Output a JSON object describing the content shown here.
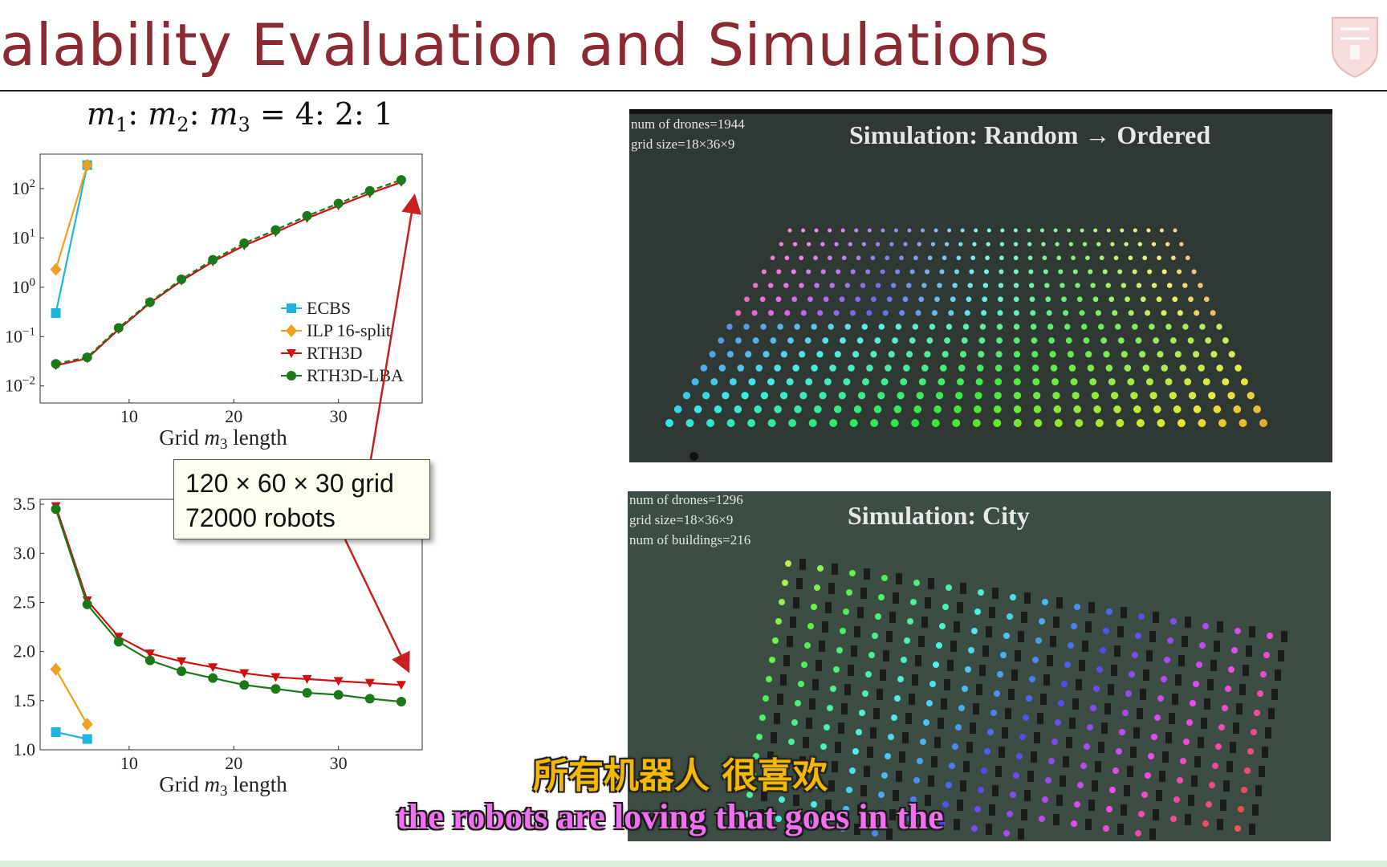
{
  "slide": {
    "title": "alability Evaluation and Simulations",
    "ratio": {
      "m1": "m",
      "s1": "1",
      "m2": "m",
      "s2": "2",
      "m3": "m",
      "s3": "3",
      "value": "= 4: 2: 1"
    }
  },
  "callout": {
    "line1": "120 × 60 × 30 grid",
    "line2": "72000 robots"
  },
  "simulations": [
    {
      "title": "Simulation: Random → Ordered",
      "info": [
        "num of drones=1944",
        "grid size=18×36×9"
      ]
    },
    {
      "title": "Simulation: City",
      "info": [
        "num of drones=1296",
        "grid size=18×36×9",
        "num of buildings=216"
      ]
    }
  ],
  "subtitles": {
    "zh": "所有机器人 很喜欢",
    "en": "the robots are loving that goes in the"
  },
  "colors": {
    "title": "#8b2a33",
    "ecbs": "#1fb3e0",
    "ilp": "#f0a020",
    "rth3d": "#d01010",
    "lba": "#1a7a1a"
  },
  "chart_data": [
    {
      "type": "line",
      "scale": "log-y",
      "xlabel_prefix": "Grid ",
      "xlabel_var": "m",
      "xlabel_sub": "3",
      "xlabel_suffix": " length",
      "xlim": [
        1.5,
        38
      ],
      "xticks": [
        10,
        20,
        30
      ],
      "yticks": [
        {
          "value": 0.01,
          "base": "10",
          "exp": "−2"
        },
        {
          "value": 0.1,
          "base": "10",
          "exp": "−1"
        },
        {
          "value": 1,
          "base": "10",
          "exp": "0"
        },
        {
          "value": 10,
          "base": "10",
          "exp": "1"
        },
        {
          "value": 100,
          "base": "10",
          "exp": "2"
        }
      ],
      "ylim": [
        0.0045,
        500
      ],
      "legend": "lower-right",
      "series": [
        {
          "name": "ECBS",
          "marker": "square",
          "color": "#1fb3e0",
          "x": [
            3,
            6
          ],
          "y": [
            0.3,
            300
          ]
        },
        {
          "name": "ILP 16-split",
          "marker": "diamond",
          "color": "#f0a020",
          "x": [
            3,
            6
          ],
          "y": [
            2.3,
            300
          ]
        },
        {
          "name": "RTH3D",
          "marker": "triangle",
          "color": "#d01010",
          "x": [
            3,
            6,
            9,
            12,
            15,
            18,
            21,
            24,
            27,
            30,
            33,
            36
          ],
          "y": [
            0.026,
            0.036,
            0.14,
            0.48,
            1.35,
            3.3,
            7.0,
            13.0,
            25.0,
            45.0,
            80.0,
            135.0
          ]
        },
        {
          "name": "RTH3D-LBA",
          "marker": "circle",
          "color": "#1a7a1a",
          "x": [
            3,
            6,
            9,
            12,
            15,
            18,
            21,
            24,
            27,
            30,
            33,
            36
          ],
          "y": [
            0.028,
            0.038,
            0.15,
            0.5,
            1.45,
            3.6,
            7.8,
            14.5,
            28.0,
            50.0,
            90.0,
            150.0
          ]
        }
      ]
    },
    {
      "type": "line",
      "xlabel_prefix": "Grid ",
      "xlabel_var": "m",
      "xlabel_sub": "3",
      "xlabel_suffix": " length",
      "xlim": [
        1.5,
        38
      ],
      "xticks": [
        10,
        20,
        30
      ],
      "yticks": [
        "1.0",
        "1.5",
        "2.0",
        "2.5",
        "3.0",
        "3.5"
      ],
      "ylim": [
        1.0,
        3.55
      ],
      "series": [
        {
          "name": "ECBS",
          "marker": "square",
          "color": "#1fb3e0",
          "x": [
            3,
            6
          ],
          "y": [
            1.18,
            1.11
          ]
        },
        {
          "name": "ILP 16-split",
          "marker": "diamond",
          "color": "#f0a020",
          "x": [
            3,
            6
          ],
          "y": [
            1.82,
            1.26
          ]
        },
        {
          "name": "RTH3D",
          "marker": "triangle",
          "color": "#d01010",
          "x": [
            3,
            6,
            9,
            12,
            15,
            18,
            21,
            24,
            27,
            30,
            33,
            36
          ],
          "y": [
            3.48,
            2.52,
            2.15,
            1.98,
            1.9,
            1.84,
            1.78,
            1.74,
            1.72,
            1.7,
            1.68,
            1.66
          ]
        },
        {
          "name": "RTH3D-LBA",
          "marker": "circle",
          "color": "#1a7a1a",
          "x": [
            3,
            6,
            9,
            12,
            15,
            18,
            21,
            24,
            27,
            30,
            33,
            36
          ],
          "y": [
            3.45,
            2.48,
            2.1,
            1.91,
            1.8,
            1.73,
            1.66,
            1.62,
            1.58,
            1.56,
            1.52,
            1.49
          ]
        }
      ]
    }
  ]
}
